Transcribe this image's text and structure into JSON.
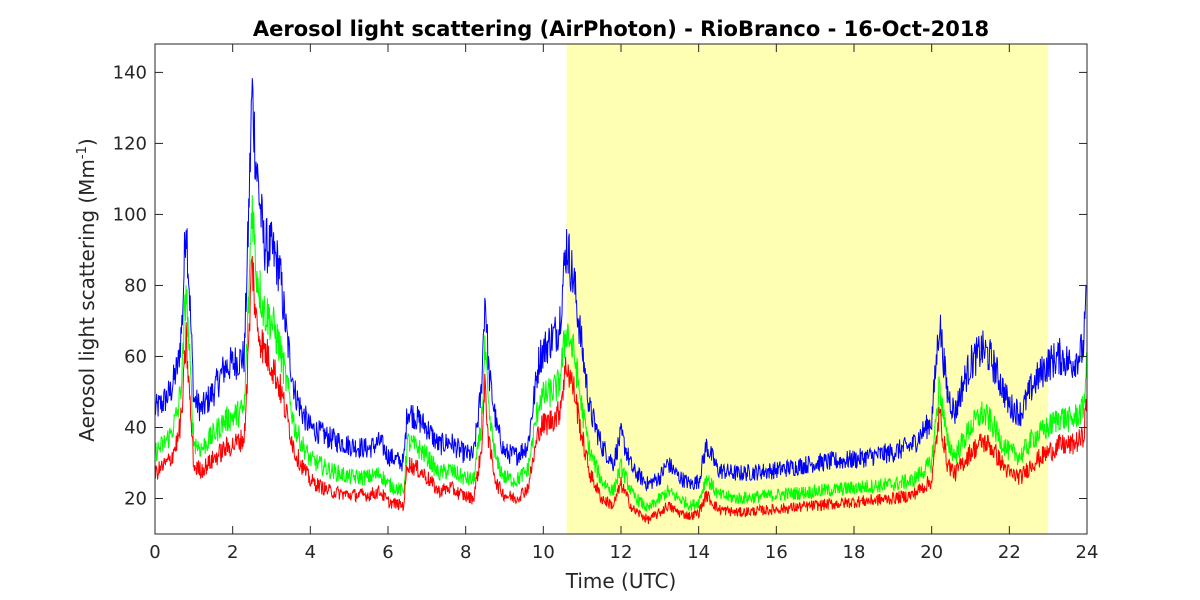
{
  "chart_data": {
    "type": "line",
    "title": "Aerosol light scattering (AirPhoton) - RioBranco - 16-Oct-2018",
    "xlabel": "Time (UTC)",
    "ylabel_main": "Aerosol light scattering (Mm",
    "ylabel_sup": "-1",
    "ylabel_close": ")",
    "xlim": [
      0,
      24
    ],
    "ylim": [
      10,
      148
    ],
    "xticks": [
      0,
      2,
      4,
      6,
      8,
      10,
      12,
      14,
      16,
      18,
      20,
      22,
      24
    ],
    "yticks": [
      20,
      40,
      60,
      80,
      100,
      120,
      140
    ],
    "grid": false,
    "shaded_region": {
      "x_start": 10.6,
      "x_end": 23.0,
      "color": "#ffffb3"
    },
    "x": [
      0,
      0.2,
      0.4,
      0.6,
      0.7,
      0.8,
      0.9,
      1.0,
      1.2,
      1.5,
      1.8,
      2.0,
      2.3,
      2.4,
      2.5,
      2.6,
      2.8,
      3.0,
      3.2,
      3.4,
      3.6,
      3.8,
      4.0,
      4.5,
      5.0,
      5.5,
      5.8,
      6.0,
      6.4,
      6.5,
      6.8,
      7.0,
      7.3,
      7.6,
      7.9,
      8.2,
      8.4,
      8.5,
      8.6,
      8.8,
      9.0,
      9.3,
      9.6,
      9.9,
      10.2,
      10.4,
      10.6,
      10.8,
      11.0,
      11.2,
      11.5,
      11.8,
      12.0,
      12.3,
      12.7,
      13.0,
      13.2,
      13.5,
      13.8,
      14.0,
      14.2,
      14.5,
      15.0,
      16.0,
      17.0,
      18.0,
      19.0,
      19.5,
      20.0,
      20.2,
      20.4,
      20.6,
      20.8,
      21.0,
      21.3,
      21.5,
      21.8,
      22.0,
      22.3,
      22.6,
      23.0,
      23.3,
      23.6,
      23.9,
      24.0
    ],
    "series": [
      {
        "color": "#0000ff",
        "values": [
          45,
          47,
          50,
          58,
          70,
          100,
          75,
          48,
          45,
          50,
          57,
          58,
          60,
          95,
          135,
          115,
          92,
          90,
          85,
          65,
          50,
          44,
          40,
          37,
          35,
          34,
          36,
          32,
          30,
          45,
          42,
          40,
          35,
          36,
          33,
          32,
          50,
          78,
          55,
          40,
          33,
          32,
          35,
          60,
          65,
          68,
          92,
          80,
          62,
          45,
          35,
          30,
          38,
          28,
          24,
          26,
          30,
          26,
          24,
          25,
          35,
          28,
          27,
          28,
          30,
          31,
          33,
          35,
          42,
          70,
          50,
          44,
          52,
          58,
          62,
          60,
          52,
          46,
          44,
          52,
          58,
          60,
          58,
          62,
          78
        ]
      },
      {
        "color": "#00ff00",
        "values": [
          33,
          35,
          38,
          45,
          55,
          80,
          57,
          36,
          34,
          38,
          42,
          43,
          45,
          72,
          105,
          85,
          73,
          70,
          63,
          52,
          40,
          35,
          31,
          28,
          26,
          26,
          27,
          24,
          22,
          36,
          34,
          32,
          27,
          28,
          26,
          25,
          40,
          62,
          43,
          30,
          26,
          25,
          28,
          48,
          50,
          52,
          68,
          60,
          45,
          33,
          25,
          22,
          29,
          21,
          17,
          20,
          22,
          20,
          18,
          19,
          26,
          21,
          20,
          21,
          22,
          23,
          24,
          25,
          30,
          52,
          36,
          32,
          36,
          40,
          44,
          42,
          36,
          33,
          32,
          37,
          40,
          43,
          42,
          45,
          58
        ]
      },
      {
        "color": "#ff0000",
        "values": [
          27,
          29,
          31,
          37,
          45,
          65,
          47,
          29,
          28,
          31,
          34,
          35,
          37,
          60,
          88,
          70,
          62,
          58,
          52,
          43,
          33,
          29,
          25,
          22,
          21,
          21,
          22,
          19,
          18,
          30,
          28,
          26,
          22,
          23,
          21,
          20,
          33,
          52,
          35,
          24,
          21,
          20,
          23,
          40,
          42,
          44,
          58,
          50,
          37,
          27,
          20,
          18,
          24,
          17,
          14,
          16,
          18,
          16,
          15,
          16,
          21,
          17,
          16,
          17,
          18,
          19,
          20,
          21,
          25,
          44,
          30,
          27,
          30,
          33,
          36,
          35,
          30,
          27,
          26,
          30,
          33,
          35,
          35,
          37,
          48
        ]
      }
    ]
  }
}
